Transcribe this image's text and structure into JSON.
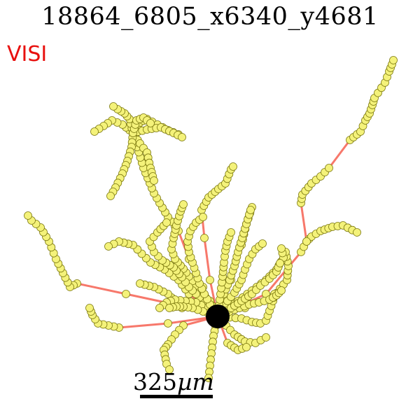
{
  "title": "18864_6805_x6340_y4681",
  "region_label": "VISI",
  "scale_bar": {
    "value": "325",
    "unit": "µm"
  },
  "colors": {
    "region_label": "#e8100e",
    "edge": "#f7786b",
    "node_fill": "#f4f27a",
    "node_stroke": "#7d7a10",
    "soma": "#000000",
    "background": "#ffffff"
  }
}
